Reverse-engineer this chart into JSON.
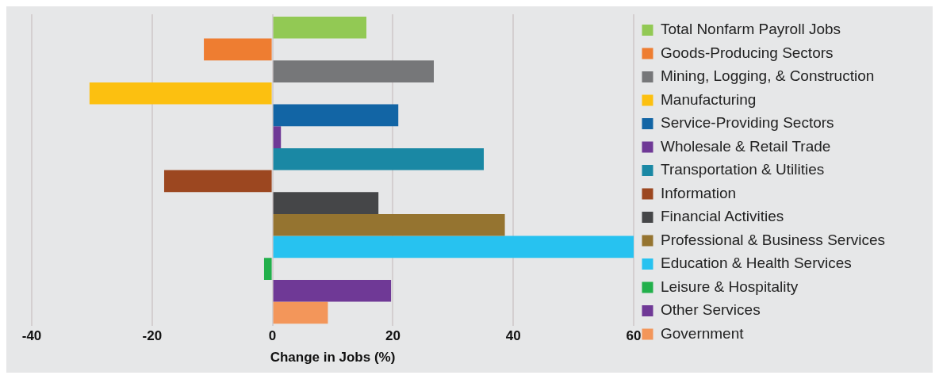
{
  "chart_data": {
    "type": "bar",
    "orientation": "horizontal",
    "xlabel": "Change in Jobs (%)",
    "categories": [
      null
    ],
    "series": [
      {
        "name": "Total Nonfarm Payroll Jobs",
        "color": "#92c954",
        "values": [
          15.6
        ]
      },
      {
        "name": "Goods-Producing Sectors",
        "color": "#ee7d31",
        "values": [
          -11.4
        ]
      },
      {
        "name": "Mining, Logging, & Construction",
        "color": "#767779",
        "values": [
          26.8
        ]
      },
      {
        "name": "Manufacturing",
        "color": "#fcc010",
        "values": [
          -30.4
        ]
      },
      {
        "name": "Service-Providing Sectors",
        "color": "#1265a5",
        "values": [
          20.9
        ]
      },
      {
        "name": "Wholesale & Retail Trade",
        "color": "#6f3996",
        "values": [
          1.4
        ]
      },
      {
        "name": "Transportation & Utilities",
        "color": "#1a88a4",
        "values": [
          35.1
        ]
      },
      {
        "name": "Information",
        "color": "#9c4720",
        "values": [
          -18.0
        ]
      },
      {
        "name": "Financial Activities",
        "color": "#454648",
        "values": [
          17.6
        ]
      },
      {
        "name": "Professional & Business Services",
        "color": "#957430",
        "values": [
          38.6
        ]
      },
      {
        "name": "Education & Health Services",
        "color": "#27c2f0",
        "values": [
          60.0
        ]
      },
      {
        "name": "Leisure & Hospitality",
        "color": "#22b04b",
        "values": [
          -1.4
        ]
      },
      {
        "name": "Other Services",
        "color": "#6f3996",
        "values": [
          19.7
        ]
      },
      {
        "name": "Government",
        "color": "#f3965a",
        "values": [
          9.2
        ]
      }
    ],
    "xlim": [
      -40,
      60
    ],
    "xticks": [
      -40,
      -20,
      0,
      20,
      40,
      60
    ],
    "grid": "x",
    "legend": "right"
  }
}
